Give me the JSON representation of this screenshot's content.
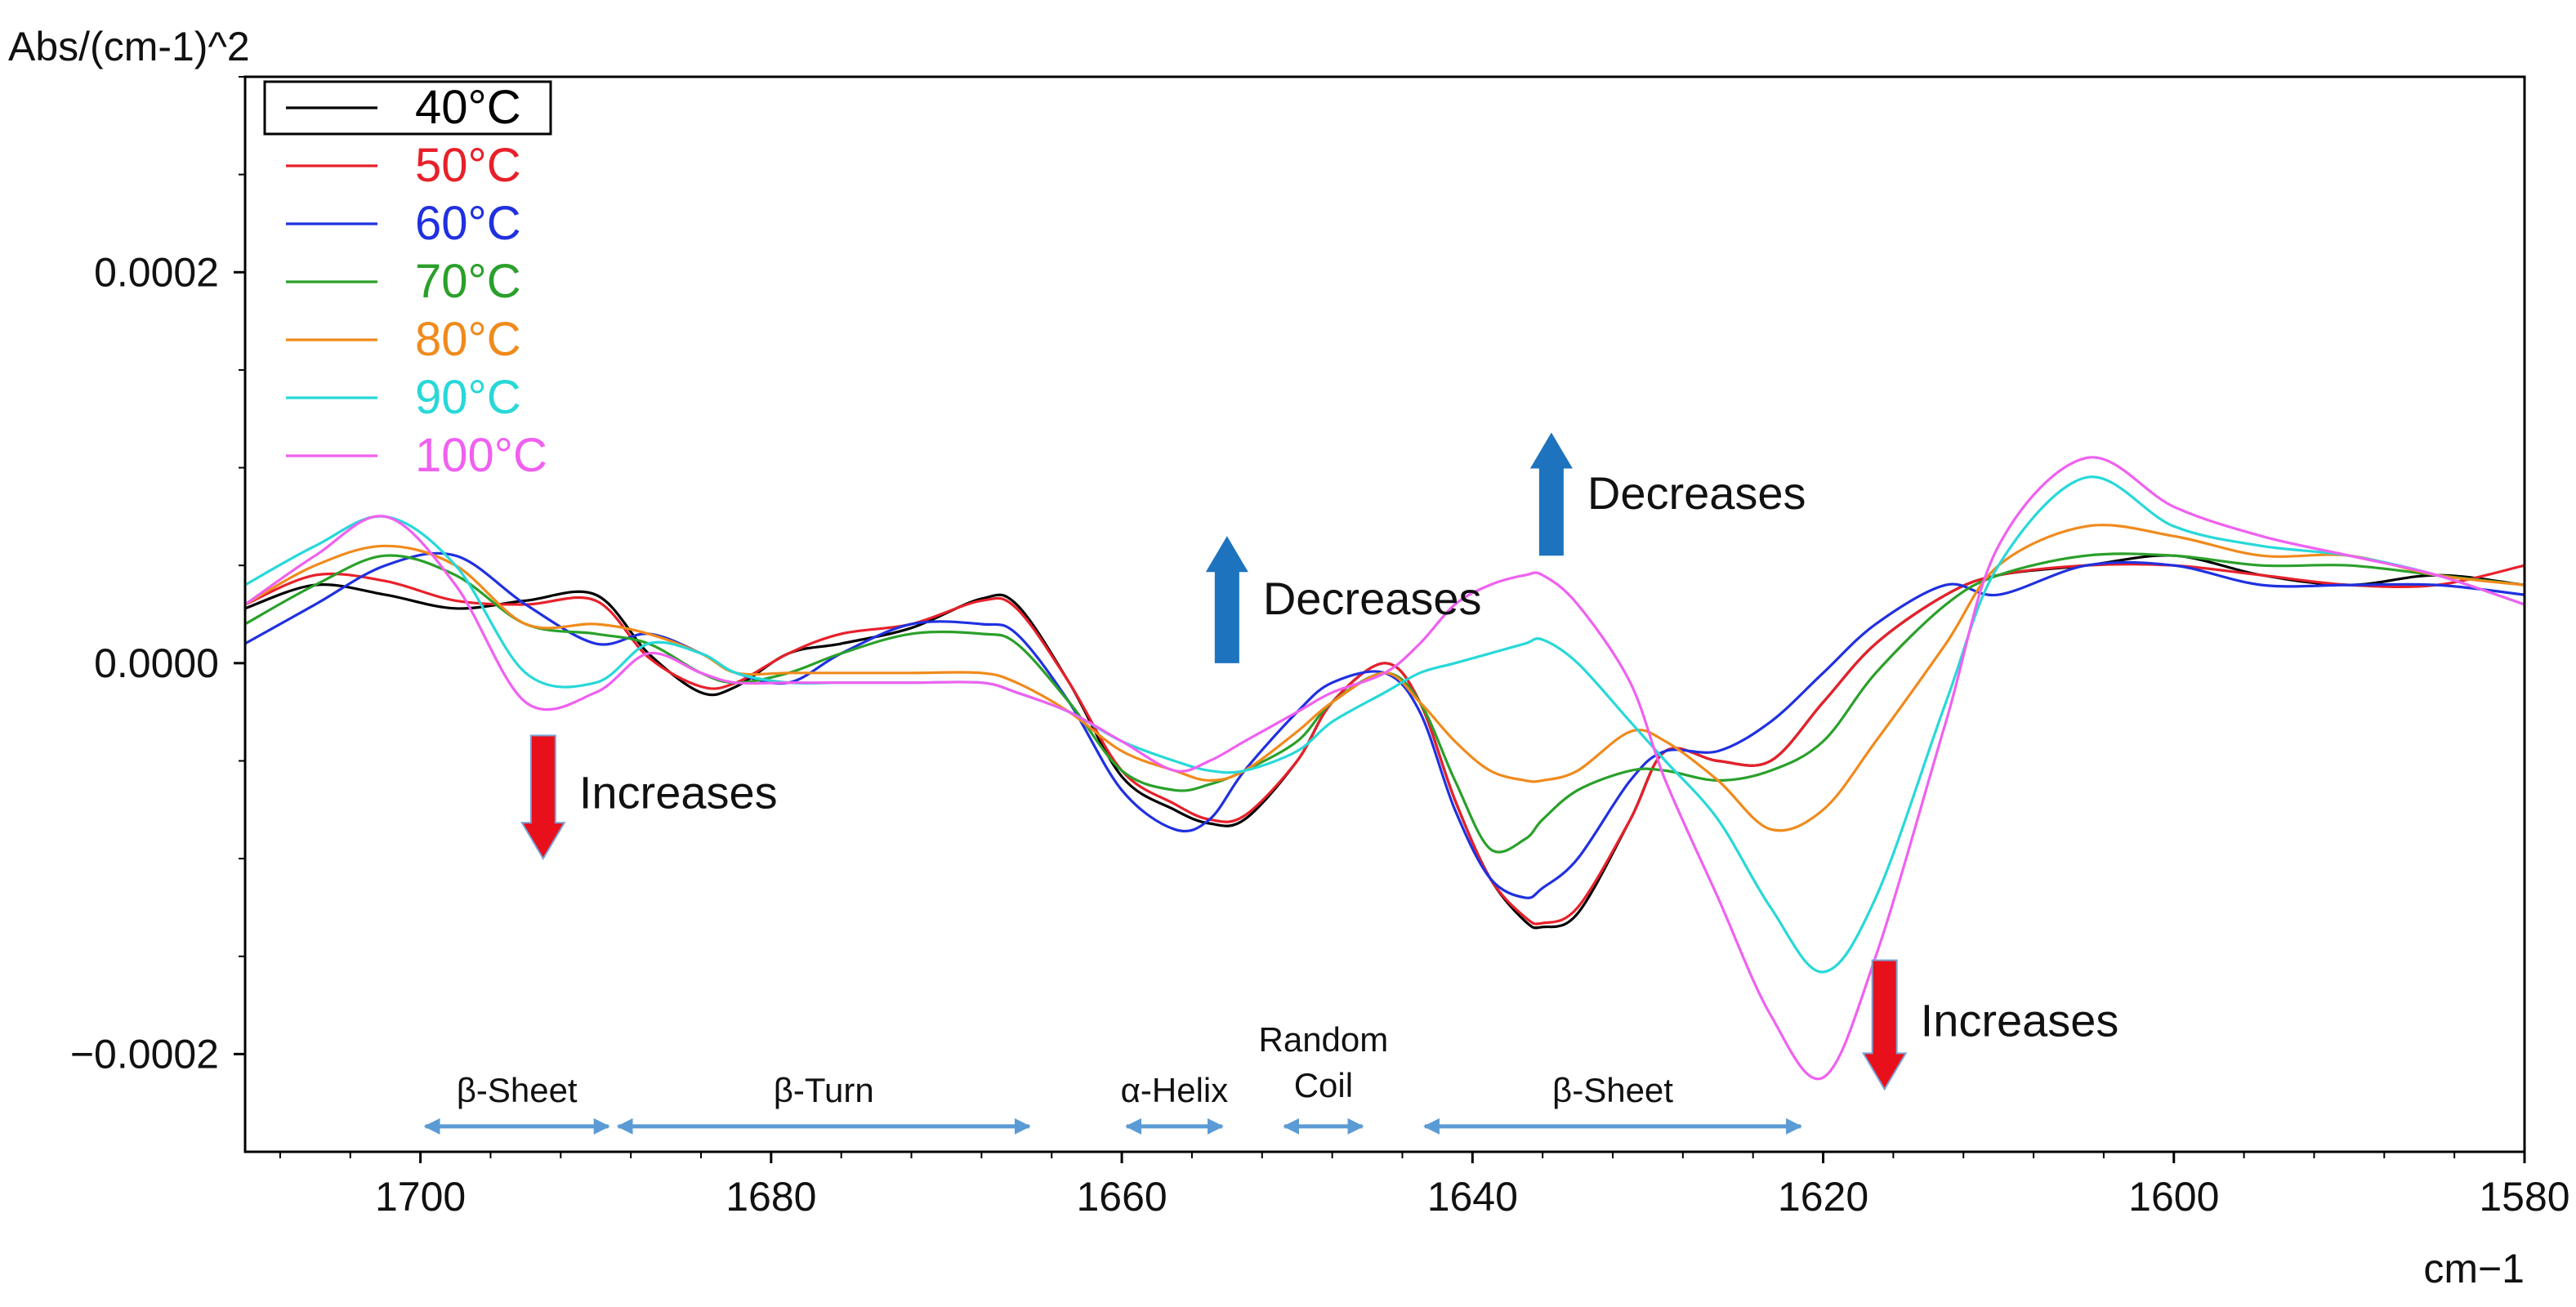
{
  "chart_data": {
    "type": "line",
    "ylabel": "Abs/(cm-1)^2",
    "xlabel": "cm−1",
    "xlim": [
      1710,
      1580
    ],
    "ylim": [
      -0.00025,
      0.0003
    ],
    "xticks": [
      1700,
      1680,
      1660,
      1640,
      1620,
      1600,
      1580
    ],
    "xtick_labels": [
      "1700",
      "1680",
      "1660",
      "1640",
      "1620",
      "1600",
      "1580"
    ],
    "yticks": [
      0.0002,
      0.0,
      -0.0002
    ],
    "ytick_labels": [
      "0.0002",
      "0.0000",
      "−0.0002"
    ],
    "legend_position": "top-left",
    "grid": false,
    "series": [
      {
        "name": "40°C",
        "color": "#000000",
        "x": [
          1710,
          1706,
          1702,
          1698,
          1694,
          1690,
          1687,
          1684,
          1682,
          1679,
          1676,
          1672,
          1668,
          1666,
          1663,
          1660,
          1657,
          1655,
          1653,
          1650,
          1648,
          1645,
          1643,
          1641,
          1639,
          1637,
          1636,
          1634,
          1631,
          1629,
          1626,
          1623,
          1620,
          1617,
          1613,
          1610,
          1605,
          1600,
          1595,
          1590,
          1585,
          1580
        ],
        "y": [
          2.8e-05,
          4e-05,
          3.5e-05,
          2.8e-05,
          3.2e-05,
          3.5e-05,
          5e-06,
          -1.5e-05,
          -1.2e-05,
          5e-06,
          1e-05,
          1.8e-05,
          3.3e-05,
          3e-05,
          -1e-05,
          -5.8e-05,
          -7.5e-05,
          -8.2e-05,
          -8e-05,
          -5e-05,
          -2e-05,
          0,
          -2e-05,
          -7e-05,
          -0.00011,
          -0.000132,
          -0.000135,
          -0.000128,
          -8e-05,
          -4.5e-05,
          -5e-05,
          -5e-05,
          -2e-05,
          1e-05,
          3.5e-05,
          4.5e-05,
          5e-05,
          5.5e-05,
          4.5e-05,
          4e-05,
          4.5e-05,
          4e-05
        ]
      },
      {
        "name": "50°C",
        "color": "#e8202a",
        "x": [
          1710,
          1706,
          1702,
          1698,
          1694,
          1690,
          1687,
          1684,
          1682,
          1679,
          1676,
          1672,
          1668,
          1666,
          1663,
          1660,
          1657,
          1655,
          1653,
          1650,
          1648,
          1645,
          1643,
          1641,
          1639,
          1637,
          1636,
          1634,
          1631,
          1629,
          1626,
          1623,
          1620,
          1617,
          1613,
          1610,
          1605,
          1600,
          1595,
          1590,
          1585,
          1580
        ],
        "y": [
          3e-05,
          4.5e-05,
          4.2e-05,
          3.2e-05,
          3e-05,
          3.2e-05,
          3e-06,
          -1.2e-05,
          -1e-05,
          5e-06,
          1.5e-05,
          2e-05,
          3.2e-05,
          2.8e-05,
          -1e-05,
          -5.5e-05,
          -7.2e-05,
          -8e-05,
          -7.8e-05,
          -5e-05,
          -2e-05,
          0,
          -2e-05,
          -7e-05,
          -0.00011,
          -0.00013,
          -0.000133,
          -0.000125,
          -8e-05,
          -4.5e-05,
          -5e-05,
          -5e-05,
          -2e-05,
          1e-05,
          3.5e-05,
          4.5e-05,
          5e-05,
          5e-05,
          4.5e-05,
          4e-05,
          4e-05,
          5e-05
        ]
      },
      {
        "name": "60°C",
        "color": "#2030e0",
        "x": [
          1710,
          1706,
          1702,
          1698,
          1694,
          1690,
          1687,
          1684,
          1682,
          1679,
          1676,
          1672,
          1668,
          1666,
          1663,
          1660,
          1657,
          1655,
          1653,
          1650,
          1648,
          1645,
          1643,
          1641,
          1639,
          1637,
          1636,
          1634,
          1631,
          1629,
          1626,
          1623,
          1620,
          1617,
          1613,
          1610,
          1605,
          1600,
          1595,
          1590,
          1585,
          1580
        ],
        "y": [
          1e-05,
          3e-05,
          5e-05,
          5.5e-05,
          3e-05,
          1e-05,
          1.5e-05,
          5e-06,
          -5e-06,
          -1e-05,
          5e-06,
          2e-05,
          2e-05,
          1.5e-05,
          -2e-05,
          -6.5e-05,
          -8.5e-05,
          -8e-05,
          -5.5e-05,
          -2.5e-05,
          -1e-05,
          -5e-06,
          -2.5e-05,
          -7.5e-05,
          -0.00011,
          -0.00012,
          -0.000115,
          -0.0001,
          -6e-05,
          -4.5e-05,
          -4.5e-05,
          -3e-05,
          -5e-06,
          2e-05,
          4e-05,
          3.5e-05,
          5e-05,
          5e-05,
          4e-05,
          4e-05,
          4e-05,
          3.5e-05
        ]
      },
      {
        "name": "70°C",
        "color": "#2aa02a",
        "x": [
          1710,
          1706,
          1702,
          1698,
          1694,
          1690,
          1687,
          1684,
          1682,
          1679,
          1676,
          1672,
          1668,
          1666,
          1663,
          1660,
          1657,
          1655,
          1653,
          1650,
          1648,
          1645,
          1643,
          1641,
          1639,
          1637,
          1636,
          1634,
          1631,
          1629,
          1626,
          1623,
          1620,
          1617,
          1613,
          1610,
          1605,
          1600,
          1595,
          1590,
          1585,
          1580
        ],
        "y": [
          2e-05,
          4e-05,
          5.5e-05,
          4.5e-05,
          2e-05,
          1.5e-05,
          1e-05,
          -5e-06,
          -1e-05,
          -5e-06,
          5e-06,
          1.5e-05,
          1.5e-05,
          1e-05,
          -2e-05,
          -5.5e-05,
          -6.5e-05,
          -6.2e-05,
          -5.5e-05,
          -4e-05,
          -2e-05,
          -5e-06,
          -2e-05,
          -6e-05,
          -9.5e-05,
          -9e-05,
          -8e-05,
          -6.5e-05,
          -5.5e-05,
          -5.5e-05,
          -6e-05,
          -5.5e-05,
          -4e-05,
          -5e-06,
          3e-05,
          4.5e-05,
          5.5e-05,
          5.5e-05,
          5e-05,
          5e-05,
          4.5e-05,
          4e-05
        ]
      },
      {
        "name": "80°C",
        "color": "#f08a1c",
        "x": [
          1710,
          1706,
          1702,
          1698,
          1694,
          1690,
          1687,
          1684,
          1682,
          1679,
          1676,
          1672,
          1668,
          1666,
          1663,
          1660,
          1657,
          1655,
          1653,
          1650,
          1648,
          1645,
          1643,
          1641,
          1639,
          1637,
          1636,
          1634,
          1631,
          1629,
          1626,
          1623,
          1620,
          1617,
          1613,
          1610,
          1605,
          1600,
          1595,
          1590,
          1585,
          1580
        ],
        "y": [
          3e-05,
          5e-05,
          6e-05,
          5e-05,
          2e-05,
          2e-05,
          1.5e-05,
          5e-06,
          -5e-06,
          -5e-06,
          -5e-06,
          -5e-06,
          -5e-06,
          -1e-05,
          -2.5e-05,
          -4.5e-05,
          -5.5e-05,
          -6e-05,
          -5.5e-05,
          -3.5e-05,
          -2e-05,
          -5e-06,
          -2e-05,
          -4e-05,
          -5.5e-05,
          -6e-05,
          -6e-05,
          -5.5e-05,
          -3.5e-05,
          -4e-05,
          -6e-05,
          -8.5e-05,
          -7.5e-05,
          -4e-05,
          1e-05,
          5e-05,
          7e-05,
          6.5e-05,
          5.5e-05,
          5.5e-05,
          4.5e-05,
          4e-05
        ]
      },
      {
        "name": "90°C",
        "color": "#28d8d8",
        "x": [
          1710,
          1706,
          1702,
          1698,
          1694,
          1690,
          1687,
          1684,
          1682,
          1679,
          1676,
          1672,
          1668,
          1666,
          1663,
          1660,
          1657,
          1655,
          1653,
          1650,
          1648,
          1645,
          1643,
          1641,
          1639,
          1637,
          1636,
          1634,
          1631,
          1629,
          1626,
          1623,
          1620,
          1617,
          1613,
          1610,
          1605,
          1600,
          1595,
          1590,
          1585,
          1580
        ],
        "y": [
          4e-05,
          6e-05,
          7.5e-05,
          5e-05,
          -5e-06,
          -1e-05,
          1e-05,
          5e-06,
          -5e-06,
          -1e-05,
          -1e-05,
          -1e-05,
          -1e-05,
          -1.5e-05,
          -2.5e-05,
          -4e-05,
          -5e-05,
          -5.5e-05,
          -5.5e-05,
          -4.5e-05,
          -3e-05,
          -1.5e-05,
          -5e-06,
          0,
          5e-06,
          1e-05,
          1.2e-05,
          0,
          -3e-05,
          -5e-05,
          -8e-05,
          -0.000125,
          -0.000158,
          -0.00012,
          -2e-05,
          5e-05,
          9.5e-05,
          7e-05,
          6e-05,
          5.5e-05,
          4.5e-05,
          3e-05
        ]
      },
      {
        "name": "100°C",
        "color": "#f060f0",
        "x": [
          1710,
          1706,
          1702,
          1698,
          1694,
          1690,
          1687,
          1684,
          1682,
          1679,
          1676,
          1672,
          1668,
          1666,
          1663,
          1660,
          1657,
          1655,
          1653,
          1650,
          1648,
          1645,
          1643,
          1641,
          1639,
          1637,
          1636,
          1634,
          1631,
          1629,
          1626,
          1623,
          1620,
          1617,
          1613,
          1610,
          1605,
          1600,
          1595,
          1590,
          1585,
          1580
        ],
        "y": [
          3e-05,
          5.5e-05,
          7.5e-05,
          4e-05,
          -2e-05,
          -1.5e-05,
          5e-06,
          -5e-06,
          -1e-05,
          -1e-05,
          -1e-05,
          -1e-05,
          -1e-05,
          -1.5e-05,
          -2.5e-05,
          -4e-05,
          -5.5e-05,
          -5e-05,
          -4e-05,
          -2.5e-05,
          -1.5e-05,
          -5e-06,
          1e-05,
          3e-05,
          4e-05,
          4.5e-05,
          4.5e-05,
          3e-05,
          -1e-05,
          -6e-05,
          -0.00012,
          -0.00018,
          -0.000212,
          -0.00015,
          -3e-05,
          6e-05,
          0.000105,
          8e-05,
          6.5e-05,
          5.5e-05,
          4.5e-05,
          3e-05
        ]
      }
    ],
    "annotations": [
      {
        "id": "dec1",
        "text": "Decreases",
        "kind": "up-arrow",
        "x": 1654,
        "y0": 0.0,
        "y1": 6.5e-05,
        "color": "#1e73be"
      },
      {
        "id": "dec2",
        "text": "Decreases",
        "kind": "up-arrow",
        "x": 1635.5,
        "y0": 5.5e-05,
        "y1": 0.000118,
        "color": "#1e73be"
      },
      {
        "id": "inc1",
        "text": "Increases",
        "kind": "down-arrow",
        "x": 1693,
        "y0": -3.7e-05,
        "y1": -0.0001,
        "color": "#e8101a"
      },
      {
        "id": "inc2",
        "text": "Increases",
        "kind": "down-arrow",
        "x": 1616.5,
        "y0": -0.000152,
        "y1": -0.000218,
        "color": "#e8101a"
      }
    ],
    "regions": [
      {
        "label": "β-Sheet",
        "x0": 1700,
        "x1": 1689
      },
      {
        "label": "β-Turn",
        "x0": 1689,
        "x1": 1665
      },
      {
        "label": "α-Helix",
        "x0": 1660,
        "x1": 1654
      },
      {
        "label": "Random Coil",
        "label_lines": [
          "Random",
          "Coil"
        ],
        "x0": 1651,
        "x1": 1646
      },
      {
        "label": "β-Sheet",
        "x0": 1643,
        "x1": 1621
      }
    ],
    "region_arrow_y": -0.000237,
    "region_color": "#5b9bd5"
  }
}
